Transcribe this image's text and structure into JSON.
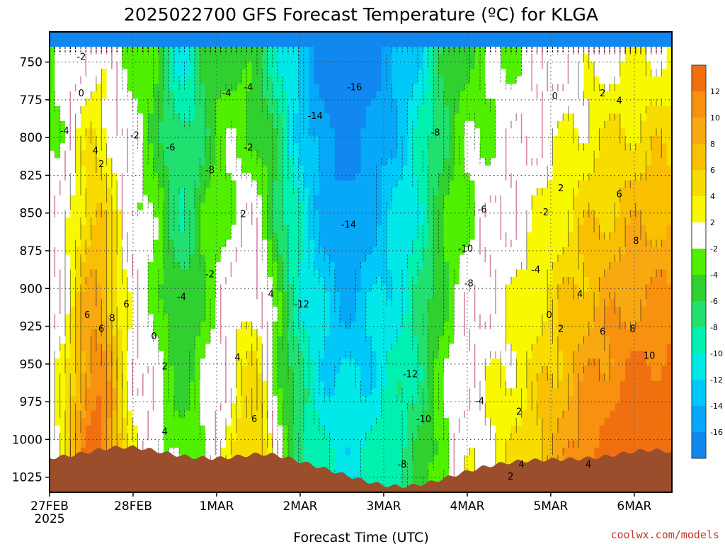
{
  "chart_data": {
    "type": "heatmap",
    "title": "2025022700 GFS Forecast Temperature (ºC) for KLGA",
    "xlabel": "Forecast Time (UTC)",
    "ylabel": "",
    "credit": "coolwx.com/models",
    "x_ticks": [
      "27FEB",
      "28FEB",
      "1MAR",
      "2MAR",
      "3MAR",
      "4MAR",
      "5MAR",
      "6MAR"
    ],
    "x_year_label": "2025",
    "y_ticks": [
      "750",
      "775",
      "800",
      "825",
      "850",
      "875",
      "900",
      "925",
      "950",
      "975",
      "1000",
      "1025"
    ],
    "y_scale": "pressure (hPa), increasing downward",
    "y_range": [
      730,
      1035
    ],
    "x_range_days": [
      0,
      7.45
    ],
    "colorbar": {
      "ticks": [
        "12",
        "10",
        "8",
        "6",
        "4",
        "2",
        "-2",
        "-4",
        "-6",
        "-8",
        "-10",
        "-12",
        "-14",
        "-16"
      ],
      "colors": [
        "#f07010",
        "#f89010",
        "#f8a810",
        "#f8c000",
        "#f8dc00",
        "#f8f800",
        "#ffffff",
        "#50f000",
        "#30d030",
        "#20e070",
        "#00f0b0",
        "#00e8e8",
        "#00c8f8",
        "#08a8f8",
        "#1088f0"
      ]
    },
    "terrain_color": "#9a4e2c",
    "contour_labels": [
      {
        "t": "-2",
        "d": 0.38,
        "p": 747
      },
      {
        "t": "0",
        "d": 0.38,
        "p": 771
      },
      {
        "t": "-4",
        "d": 0.18,
        "p": 796
      },
      {
        "t": "-2",
        "d": 1.02,
        "p": 799
      },
      {
        "t": "4",
        "d": 0.55,
        "p": 809
      },
      {
        "t": "2",
        "d": 0.62,
        "p": 818
      },
      {
        "t": "6",
        "d": 0.45,
        "p": 918
      },
      {
        "t": "6",
        "d": 0.62,
        "p": 927
      },
      {
        "t": "8",
        "d": 0.75,
        "p": 920
      },
      {
        "t": "6",
        "d": 0.92,
        "p": 911
      },
      {
        "t": "0",
        "d": 1.25,
        "p": 932
      },
      {
        "t": "2",
        "d": 1.38,
        "p": 952
      },
      {
        "t": "4",
        "d": 1.38,
        "p": 995
      },
      {
        "t": "-6",
        "d": 1.45,
        "p": 807
      },
      {
        "t": "-8",
        "d": 1.92,
        "p": 822
      },
      {
        "t": "-4",
        "d": 1.58,
        "p": 906
      },
      {
        "t": "-2",
        "d": 1.92,
        "p": 891
      },
      {
        "t": "-4",
        "d": 2.12,
        "p": 771
      },
      {
        "t": "-4",
        "d": 2.38,
        "p": 767
      },
      {
        "t": "-2",
        "d": 2.38,
        "p": 807
      },
      {
        "t": "2",
        "d": 2.32,
        "p": 851
      },
      {
        "t": "4",
        "d": 2.25,
        "p": 946
      },
      {
        "t": "4",
        "d": 2.65,
        "p": 904
      },
      {
        "t": "6",
        "d": 2.45,
        "p": 987
      },
      {
        "t": "-16",
        "d": 3.65,
        "p": 767
      },
      {
        "t": "-14",
        "d": 3.18,
        "p": 786
      },
      {
        "t": "-14",
        "d": 3.58,
        "p": 858
      },
      {
        "t": "-12",
        "d": 3.02,
        "p": 911
      },
      {
        "t": "-12",
        "d": 4.32,
        "p": 957
      },
      {
        "t": "-10",
        "d": 4.48,
        "p": 987
      },
      {
        "t": "-8",
        "d": 4.22,
        "p": 1017
      },
      {
        "t": "-8",
        "d": 4.62,
        "p": 797
      },
      {
        "t": "-6",
        "d": 5.18,
        "p": 848
      },
      {
        "t": "-10",
        "d": 4.98,
        "p": 874
      },
      {
        "t": "-8",
        "d": 5.02,
        "p": 897
      },
      {
        "t": "-4",
        "d": 5.15,
        "p": 975
      },
      {
        "t": "-4",
        "d": 5.82,
        "p": 888
      },
      {
        "t": "2",
        "d": 5.62,
        "p": 982
      },
      {
        "t": "4",
        "d": 5.65,
        "p": 1017
      },
      {
        "t": "2",
        "d": 5.52,
        "p": 1025
      },
      {
        "t": "-2",
        "d": 5.92,
        "p": 850
      },
      {
        "t": "0",
        "d": 6.05,
        "p": 773
      },
      {
        "t": "0",
        "d": 5.98,
        "p": 918
      },
      {
        "t": "2",
        "d": 6.12,
        "p": 927
      },
      {
        "t": "2",
        "d": 6.12,
        "p": 834
      },
      {
        "t": "4",
        "d": 6.35,
        "p": 904
      },
      {
        "t": "4",
        "d": 6.45,
        "p": 1017
      },
      {
        "t": "2",
        "d": 6.62,
        "p": 771
      },
      {
        "t": "4",
        "d": 6.82,
        "p": 776
      },
      {
        "t": "6",
        "d": 6.82,
        "p": 838
      },
      {
        "t": "8",
        "d": 7.02,
        "p": 869
      },
      {
        "t": "6",
        "d": 6.62,
        "p": 929
      },
      {
        "t": "8",
        "d": 6.98,
        "p": 927
      },
      {
        "t": "10",
        "d": 7.18,
        "p": 945
      }
    ]
  }
}
